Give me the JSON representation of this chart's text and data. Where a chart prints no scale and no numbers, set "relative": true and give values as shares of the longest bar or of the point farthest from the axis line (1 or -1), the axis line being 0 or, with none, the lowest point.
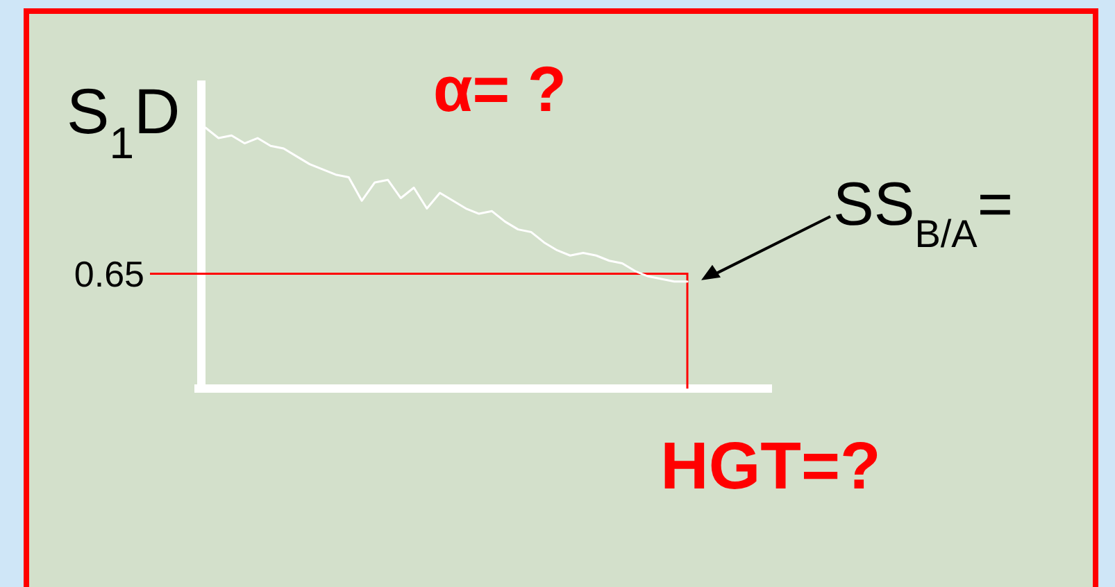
{
  "chart_data": {
    "type": "line",
    "relative": true,
    "title": "α= ?",
    "ylabel": "S$_{1}$D",
    "categories": [
      null,
      null,
      null,
      null,
      null,
      null,
      null,
      null,
      null,
      null,
      null,
      null,
      null,
      null,
      null,
      null,
      null,
      null,
      null,
      null,
      null,
      null,
      null,
      null,
      null,
      null,
      null,
      null,
      null,
      null,
      null,
      null,
      null,
      null,
      null,
      null,
      null,
      null
    ],
    "series": [
      {
        "color": "#ffffff",
        "values": [
          1.0,
          0.96,
          0.97,
          0.94,
          0.96,
          0.93,
          0.92,
          0.89,
          0.86,
          0.84,
          0.82,
          0.81,
          0.72,
          0.79,
          0.8,
          0.73,
          0.77,
          0.69,
          0.75,
          0.72,
          0.69,
          0.67,
          0.68,
          0.64,
          0.61,
          0.6,
          0.56,
          0.53,
          0.51,
          0.52,
          0.51,
          0.49,
          0.48,
          0.45,
          0.43,
          0.42,
          0.41,
          0.41
        ]
      }
    ],
    "ref_lines": [
      {
        "axis": "y",
        "value": 0.44,
        "color": "#ff0000"
      }
    ],
    "annotations": [
      "0.65",
      "SS$_{B/A}$=",
      "HGT=?"
    ],
    "grid": false,
    "marker": "none",
    "line_style": "solid"
  }
}
